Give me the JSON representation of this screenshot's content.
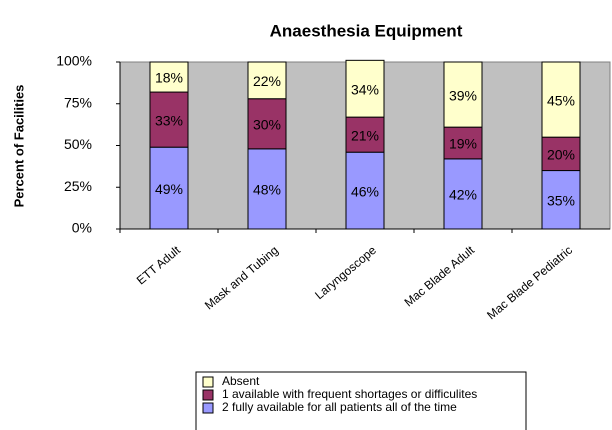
{
  "chart_data": {
    "type": "stacked_bar",
    "title": "Anaesthesia Equipment",
    "y_label": "Percent of Facilities",
    "categories": [
      "ETT Adult",
      "Mask and Tubing",
      "Laryngoscope",
      "Mac Blade Adult",
      "Mac Blade Pediatric"
    ],
    "series": [
      {
        "name": "2 fully available for all patients all of the time",
        "color": "#9999ff",
        "values": [
          49,
          48,
          46,
          42,
          35
        ],
        "value_labels": [
          "49%",
          "48%",
          "46%",
          "42%",
          "35%"
        ]
      },
      {
        "name": "1 available with frequent shortages or difficulites",
        "color": "#993366",
        "values": [
          33,
          30,
          21,
          19,
          20
        ],
        "value_labels": [
          "33%",
          "30%",
          "21%",
          "19%",
          "20%"
        ]
      },
      {
        "name": "Absent",
        "color": "#ffffcc",
        "values": [
          18,
          22,
          34,
          39,
          45
        ],
        "value_labels": [
          "18%",
          "22%",
          "34%",
          "39%",
          "45%"
        ]
      }
    ],
    "ylim": [
      0,
      100
    ],
    "yticks": [
      {
        "value": 0,
        "label": "0%"
      },
      {
        "value": 25,
        "label": "25%"
      },
      {
        "value": 50,
        "label": "50%"
      },
      {
        "value": 75,
        "label": "75%"
      },
      {
        "value": 100,
        "label": "100%"
      }
    ],
    "plot_background": "#c0c0c0",
    "grid": false
  }
}
